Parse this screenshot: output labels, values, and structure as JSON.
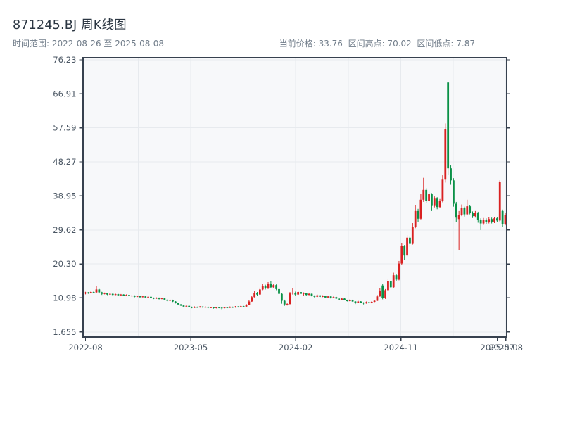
{
  "header": {
    "title": "871245.BJ 周K线图",
    "subtitle": "时间范围: 2022-08-26 至 2025-08-08",
    "stats": "当前价格: 33.76  区间高点: 70.02  区间低点: 7.87"
  },
  "chart_data": {
    "type": "candlestick",
    "symbol": "871245.BJ",
    "period": "weekly",
    "date_range": [
      "2022-08-26",
      "2025-08-08"
    ],
    "current_price": 33.76,
    "range_high": 70.02,
    "range_low": 7.87,
    "up_color": "#d92121",
    "down_color": "#0a9147",
    "plot_bg": "#f7f8fa",
    "grid_color": "#e7eaee",
    "spine_color": "#37414f",
    "ylim": [
      0.5,
      76.8
    ],
    "y_ticks": [
      76.23,
      66.91,
      57.59,
      48.27,
      38.95,
      29.62,
      20.3,
      10.98,
      1.655
    ],
    "y_tick_labels": [
      "76.23",
      "66.91",
      "57.59",
      "48.27",
      "38.95",
      "29.62",
      "20.30",
      "10.98",
      "1.655"
    ],
    "x_tick_labels": [
      "2022-08",
      "2023-05",
      "2024-02",
      "2024-11",
      "2025-07",
      "2025-08"
    ],
    "x_tick_indices": [
      0,
      38.6,
      77.1,
      115.7,
      151.1,
      154.2
    ],
    "grid_x_indices": [
      19.3,
      38.6,
      57.8,
      77.1,
      96.4,
      115.7,
      134.9,
      154.2
    ],
    "candles": [
      [
        12.2,
        12.65,
        11.95,
        12.45
      ],
      [
        12.45,
        12.6,
        12.1,
        12.3
      ],
      [
        12.3,
        12.9,
        12.2,
        12.6
      ],
      [
        12.6,
        12.75,
        12.3,
        12.5
      ],
      [
        12.5,
        14.2,
        12.4,
        13.3
      ],
      [
        13.3,
        13.45,
        12.2,
        12.5
      ],
      [
        12.5,
        12.65,
        11.8,
        12.1
      ],
      [
        12.1,
        12.45,
        11.95,
        12.3
      ],
      [
        12.3,
        12.4,
        11.75,
        11.9
      ],
      [
        11.9,
        12.25,
        11.8,
        12.1
      ],
      [
        12.1,
        12.2,
        11.65,
        11.8
      ],
      [
        11.8,
        12.15,
        11.7,
        12.0
      ],
      [
        12.0,
        12.1,
        11.55,
        11.7
      ],
      [
        11.7,
        12.05,
        11.6,
        11.9
      ],
      [
        11.9,
        12.0,
        11.45,
        11.6
      ],
      [
        11.6,
        11.95,
        11.5,
        11.8
      ],
      [
        11.8,
        11.9,
        11.35,
        11.5
      ],
      [
        11.5,
        11.75,
        11.4,
        11.6
      ],
      [
        11.6,
        11.7,
        11.15,
        11.3
      ],
      [
        11.3,
        11.65,
        11.2,
        11.5
      ],
      [
        11.5,
        11.6,
        11.05,
        11.2
      ],
      [
        11.2,
        11.55,
        11.1,
        11.4
      ],
      [
        11.4,
        11.5,
        10.95,
        11.1
      ],
      [
        11.1,
        11.45,
        11.0,
        11.3
      ],
      [
        11.3,
        11.4,
        10.85,
        11.0
      ],
      [
        11.0,
        11.1,
        10.65,
        10.8
      ],
      [
        10.8,
        11.15,
        10.7,
        11.0
      ],
      [
        11.0,
        11.1,
        10.55,
        10.7
      ],
      [
        10.7,
        11.05,
        10.6,
        10.9
      ],
      [
        10.9,
        11.0,
        10.35,
        10.5
      ],
      [
        10.5,
        10.6,
        10.05,
        10.2
      ],
      [
        10.2,
        10.55,
        10.1,
        10.4
      ],
      [
        10.4,
        10.5,
        9.85,
        10.0
      ],
      [
        10.0,
        10.1,
        9.45,
        9.6
      ],
      [
        9.6,
        9.7,
        9.05,
        9.2
      ],
      [
        9.2,
        9.3,
        8.75,
        8.9
      ],
      [
        8.9,
        9.0,
        8.45,
        8.6
      ],
      [
        8.6,
        8.95,
        8.5,
        8.8
      ],
      [
        8.8,
        8.9,
        8.35,
        8.5
      ],
      [
        8.5,
        8.6,
        8.15,
        8.3
      ],
      [
        8.3,
        8.65,
        8.2,
        8.5
      ],
      [
        8.5,
        8.6,
        8.25,
        8.4
      ],
      [
        8.4,
        8.75,
        8.3,
        8.6
      ],
      [
        8.6,
        8.7,
        8.25,
        8.4
      ],
      [
        8.4,
        8.65,
        8.3,
        8.5
      ],
      [
        8.5,
        8.6,
        8.15,
        8.3
      ],
      [
        8.3,
        8.55,
        8.2,
        8.4
      ],
      [
        8.4,
        8.5,
        8.05,
        8.2
      ],
      [
        8.2,
        8.55,
        8.1,
        8.4
      ],
      [
        8.4,
        8.5,
        8.15,
        8.3
      ],
      [
        8.3,
        8.4,
        7.87,
        8.2
      ],
      [
        8.2,
        8.55,
        8.1,
        8.4
      ],
      [
        8.4,
        8.5,
        8.15,
        8.3
      ],
      [
        8.3,
        8.65,
        8.2,
        8.5
      ],
      [
        8.5,
        8.6,
        8.25,
        8.4
      ],
      [
        8.4,
        8.75,
        8.3,
        8.6
      ],
      [
        8.6,
        8.7,
        8.35,
        8.5
      ],
      [
        8.5,
        8.85,
        8.4,
        8.7
      ],
      [
        8.7,
        8.8,
        8.45,
        8.6
      ],
      [
        8.6,
        9.3,
        8.5,
        9.1
      ],
      [
        9.1,
        10.4,
        9.0,
        10.0
      ],
      [
        10.0,
        11.6,
        9.9,
        11.2
      ],
      [
        11.2,
        12.8,
        11.1,
        12.4
      ],
      [
        12.4,
        12.6,
        11.6,
        11.9
      ],
      [
        11.9,
        13.8,
        11.8,
        13.3
      ],
      [
        13.3,
        14.9,
        13.1,
        14.3
      ],
      [
        14.3,
        14.6,
        13.3,
        13.6
      ],
      [
        13.6,
        15.3,
        13.4,
        14.9
      ],
      [
        14.9,
        15.6,
        13.6,
        13.9
      ],
      [
        13.9,
        14.9,
        13.7,
        14.5
      ],
      [
        14.5,
        14.7,
        13.1,
        13.4
      ],
      [
        13.4,
        13.6,
        11.7,
        12.1
      ],
      [
        12.1,
        12.3,
        9.4,
        10.2
      ],
      [
        10.2,
        10.5,
        8.8,
        9.2
      ],
      [
        9.2,
        9.5,
        8.9,
        9.3
      ],
      [
        9.3,
        12.6,
        9.2,
        12.2
      ],
      [
        12.2,
        13.6,
        11.9,
        12.4
      ],
      [
        12.4,
        12.7,
        11.6,
        11.9
      ],
      [
        11.9,
        12.9,
        11.8,
        12.6
      ],
      [
        12.6,
        12.8,
        11.9,
        12.1
      ],
      [
        12.1,
        12.5,
        11.5,
        12.3
      ],
      [
        12.3,
        12.4,
        11.6,
        11.8
      ],
      [
        11.8,
        12.3,
        11.7,
        12.1
      ],
      [
        12.1,
        12.2,
        11.4,
        11.6
      ],
      [
        11.6,
        11.7,
        11.1,
        11.3
      ],
      [
        11.3,
        11.9,
        11.2,
        11.7
      ],
      [
        11.7,
        11.8,
        11.1,
        11.3
      ],
      [
        11.3,
        11.7,
        11.2,
        11.5
      ],
      [
        11.5,
        11.6,
        10.9,
        11.1
      ],
      [
        11.1,
        11.5,
        11.0,
        11.4
      ],
      [
        11.4,
        11.5,
        10.8,
        11.0
      ],
      [
        11.0,
        11.4,
        10.9,
        11.2
      ],
      [
        11.2,
        11.3,
        10.7,
        10.8
      ],
      [
        10.8,
        10.9,
        10.4,
        10.5
      ],
      [
        10.5,
        10.9,
        10.4,
        10.8
      ],
      [
        10.8,
        10.9,
        10.3,
        10.4
      ],
      [
        10.4,
        10.5,
        10.0,
        10.1
      ],
      [
        10.1,
        10.6,
        10.0,
        10.4
      ],
      [
        10.4,
        10.5,
        9.9,
        10.0
      ],
      [
        10.0,
        10.1,
        9.3,
        9.7
      ],
      [
        9.7,
        10.2,
        9.6,
        10.0
      ],
      [
        10.0,
        10.1,
        9.6,
        9.7
      ],
      [
        9.7,
        9.8,
        9.2,
        9.5
      ],
      [
        9.5,
        10.0,
        9.4,
        9.8
      ],
      [
        9.8,
        9.9,
        9.5,
        9.6
      ],
      [
        9.6,
        10.1,
        9.5,
        9.9
      ],
      [
        9.9,
        10.4,
        9.8,
        10.2
      ],
      [
        10.2,
        11.8,
        10.1,
        11.4
      ],
      [
        11.4,
        13.6,
        11.3,
        13.0
      ],
      [
        14.4,
        14.8,
        10.6,
        10.9
      ],
      [
        10.9,
        13.4,
        10.7,
        13.1
      ],
      [
        13.1,
        16.2,
        12.9,
        15.5
      ],
      [
        15.5,
        15.7,
        13.6,
        13.9
      ],
      [
        13.9,
        17.9,
        13.7,
        17.2
      ],
      [
        17.2,
        17.5,
        15.6,
        16.0
      ],
      [
        16.0,
        21.1,
        15.8,
        20.4
      ],
      [
        20.4,
        26.1,
        20.1,
        25.2
      ],
      [
        25.2,
        25.5,
        21.4,
        22.6
      ],
      [
        22.6,
        28.2,
        22.3,
        27.5
      ],
      [
        27.5,
        27.9,
        25.0,
        25.8
      ],
      [
        25.8,
        31.5,
        25.6,
        30.4
      ],
      [
        30.4,
        36.4,
        30.1,
        34.8
      ],
      [
        34.8,
        35.4,
        31.8,
        32.7
      ],
      [
        32.7,
        39.6,
        32.5,
        37.9
      ],
      [
        37.9,
        43.9,
        37.3,
        40.6
      ],
      [
        40.6,
        41.1,
        36.9,
        37.6
      ],
      [
        37.6,
        40.0,
        37.2,
        39.4
      ],
      [
        39.4,
        39.7,
        34.8,
        36.2
      ],
      [
        36.2,
        38.8,
        35.8,
        38.2
      ],
      [
        38.2,
        38.6,
        35.3,
        35.9
      ],
      [
        35.9,
        38.1,
        35.6,
        37.6
      ],
      [
        37.6,
        44.6,
        37.2,
        43.4
      ],
      [
        43.4,
        58.8,
        42.6,
        57.2
      ],
      [
        70.02,
        70.02,
        44.8,
        46.5
      ],
      [
        46.5,
        47.3,
        42.0,
        43.2
      ],
      [
        43.2,
        43.8,
        36.0,
        36.8
      ],
      [
        36.8,
        37.3,
        31.8,
        33.0
      ],
      [
        32.6,
        34.8,
        24.0,
        33.8
      ],
      [
        33.8,
        36.6,
        33.4,
        35.6
      ],
      [
        35.6,
        36.0,
        33.3,
        33.9
      ],
      [
        33.9,
        37.9,
        33.6,
        36.1
      ],
      [
        36.1,
        36.5,
        33.9,
        34.3
      ],
      [
        34.3,
        34.7,
        32.9,
        33.4
      ],
      [
        33.4,
        34.8,
        33.0,
        34.3
      ],
      [
        34.3,
        34.6,
        31.6,
        32.4
      ],
      [
        32.4,
        32.8,
        29.6,
        31.4
      ],
      [
        31.4,
        32.9,
        31.0,
        32.4
      ],
      [
        32.4,
        32.8,
        31.2,
        31.7
      ],
      [
        31.7,
        33.1,
        31.4,
        32.6
      ],
      [
        32.6,
        33.0,
        31.4,
        31.9
      ],
      [
        31.9,
        33.2,
        31.5,
        32.8
      ],
      [
        32.8,
        33.1,
        31.8,
        32.2
      ],
      [
        32.2,
        43.2,
        31.7,
        42.8
      ],
      [
        34.8,
        35.2,
        30.5,
        31.2
      ],
      [
        31.2,
        34.3,
        30.9,
        33.76
      ]
    ]
  }
}
